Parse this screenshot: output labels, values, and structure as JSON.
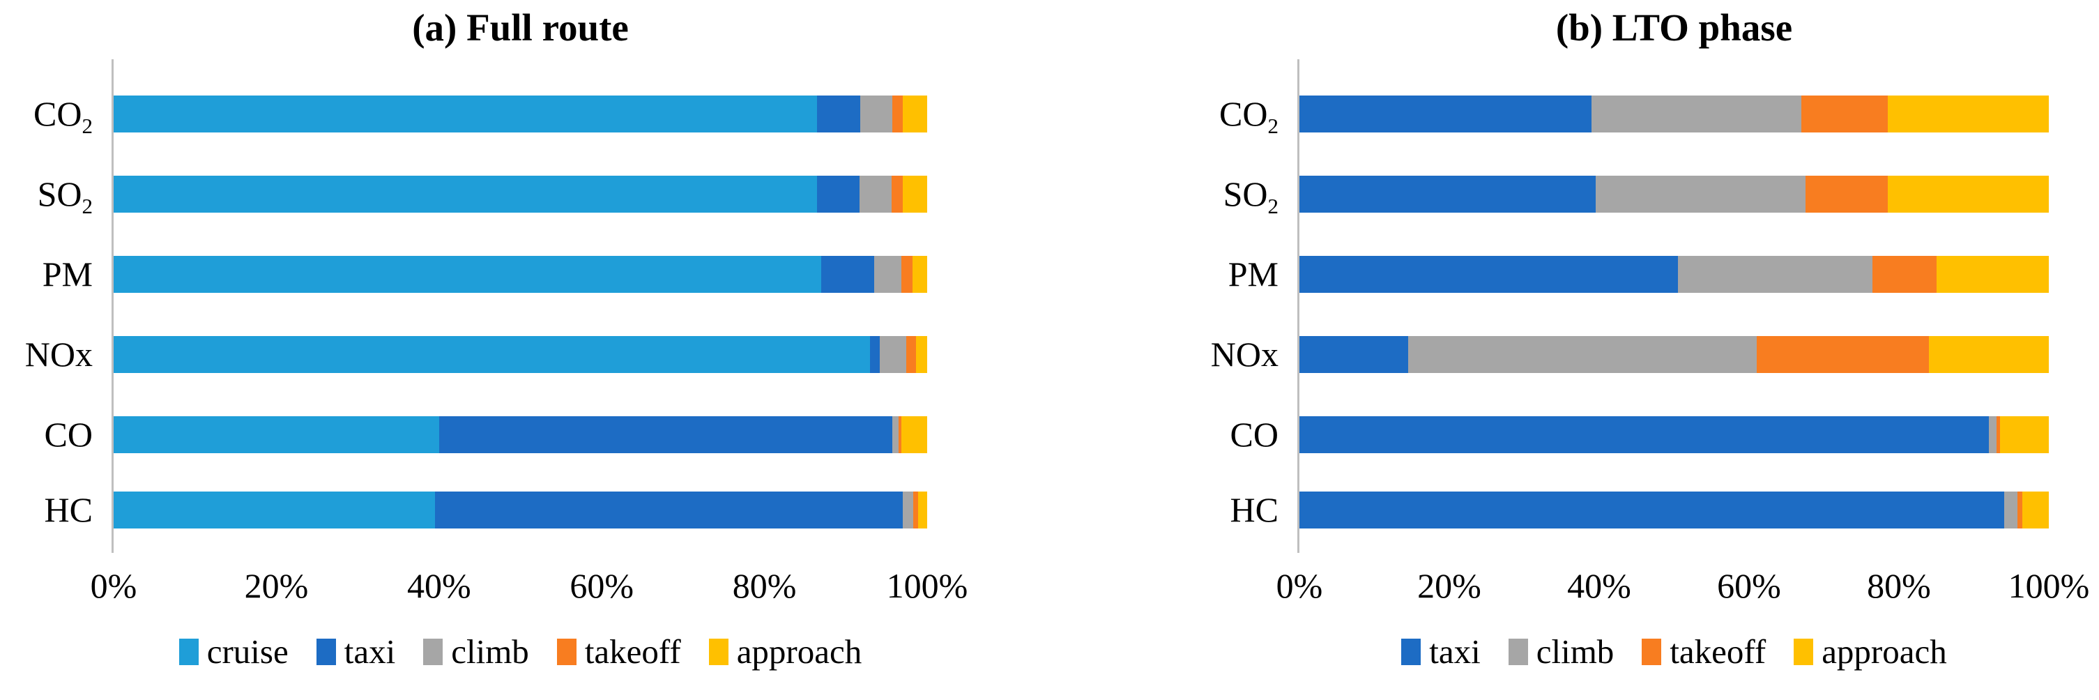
{
  "figure": {
    "background": "#ffffff",
    "text_color": "#000000",
    "axis_line_color": "#bfbfbf"
  },
  "chart_data": [
    {
      "type": "bar",
      "stacked": true,
      "orientation": "horizontal",
      "title": "(a) Full route",
      "categories": [
        "CO₂",
        "SO₂",
        "PM",
        "NOx",
        "CO",
        "HC"
      ],
      "categories_rich": [
        {
          "base": "CO",
          "sub": "2"
        },
        {
          "base": "SO",
          "sub": "2"
        },
        {
          "base": "PM",
          "sub": ""
        },
        {
          "base": "NOx",
          "sub": ""
        },
        {
          "base": "CO",
          "sub": ""
        },
        {
          "base": "HC",
          "sub": ""
        }
      ],
      "x_tick_labels": [
        "0%",
        "20%",
        "40%",
        "60%",
        "80%",
        "100%"
      ],
      "xlim": [
        0,
        100
      ],
      "grid": false,
      "legend_position": "bottom",
      "series": [
        {
          "name": "cruise",
          "color": "#1f9ed8",
          "values": [
            86.5,
            86.5,
            87.0,
            93.0,
            40.0,
            39.5
          ]
        },
        {
          "name": "taxi",
          "color": "#1d6cc4",
          "values": [
            5.3,
            5.2,
            6.5,
            1.2,
            55.7,
            57.5
          ]
        },
        {
          "name": "climb",
          "color": "#a6a6a6",
          "values": [
            3.9,
            3.9,
            3.3,
            3.2,
            0.8,
            1.3
          ]
        },
        {
          "name": "takeoff",
          "color": "#f87d20",
          "values": [
            1.3,
            1.4,
            1.4,
            1.2,
            0.3,
            0.6
          ]
        },
        {
          "name": "approach",
          "color": "#ffc000",
          "values": [
            3.0,
            3.0,
            1.8,
            1.4,
            3.2,
            1.1
          ]
        }
      ]
    },
    {
      "type": "bar",
      "stacked": true,
      "orientation": "horizontal",
      "title": "(b) LTO phase",
      "categories": [
        "CO₂",
        "SO₂",
        "PM",
        "NOx",
        "CO",
        "HC"
      ],
      "categories_rich": [
        {
          "base": "CO",
          "sub": "2"
        },
        {
          "base": "SO",
          "sub": "2"
        },
        {
          "base": "PM",
          "sub": ""
        },
        {
          "base": "NOx",
          "sub": ""
        },
        {
          "base": "CO",
          "sub": ""
        },
        {
          "base": "HC",
          "sub": ""
        }
      ],
      "x_tick_labels": [
        "0%",
        "20%",
        "40%",
        "60%",
        "80%",
        "100%"
      ],
      "xlim": [
        0,
        100
      ],
      "grid": false,
      "legend_position": "bottom",
      "series": [
        {
          "name": "taxi",
          "color": "#1d6cc4",
          "values": [
            39.0,
            39.5,
            50.5,
            14.5,
            92.0,
            94.0
          ]
        },
        {
          "name": "climb",
          "color": "#a6a6a6",
          "values": [
            28.0,
            28.0,
            26.0,
            46.5,
            1.0,
            1.8
          ]
        },
        {
          "name": "takeoff",
          "color": "#f87d20",
          "values": [
            11.5,
            11.0,
            8.5,
            23.0,
            0.5,
            0.7
          ]
        },
        {
          "name": "approach",
          "color": "#ffc000",
          "values": [
            21.5,
            21.5,
            15.0,
            16.0,
            6.5,
            3.5
          ]
        }
      ]
    }
  ]
}
